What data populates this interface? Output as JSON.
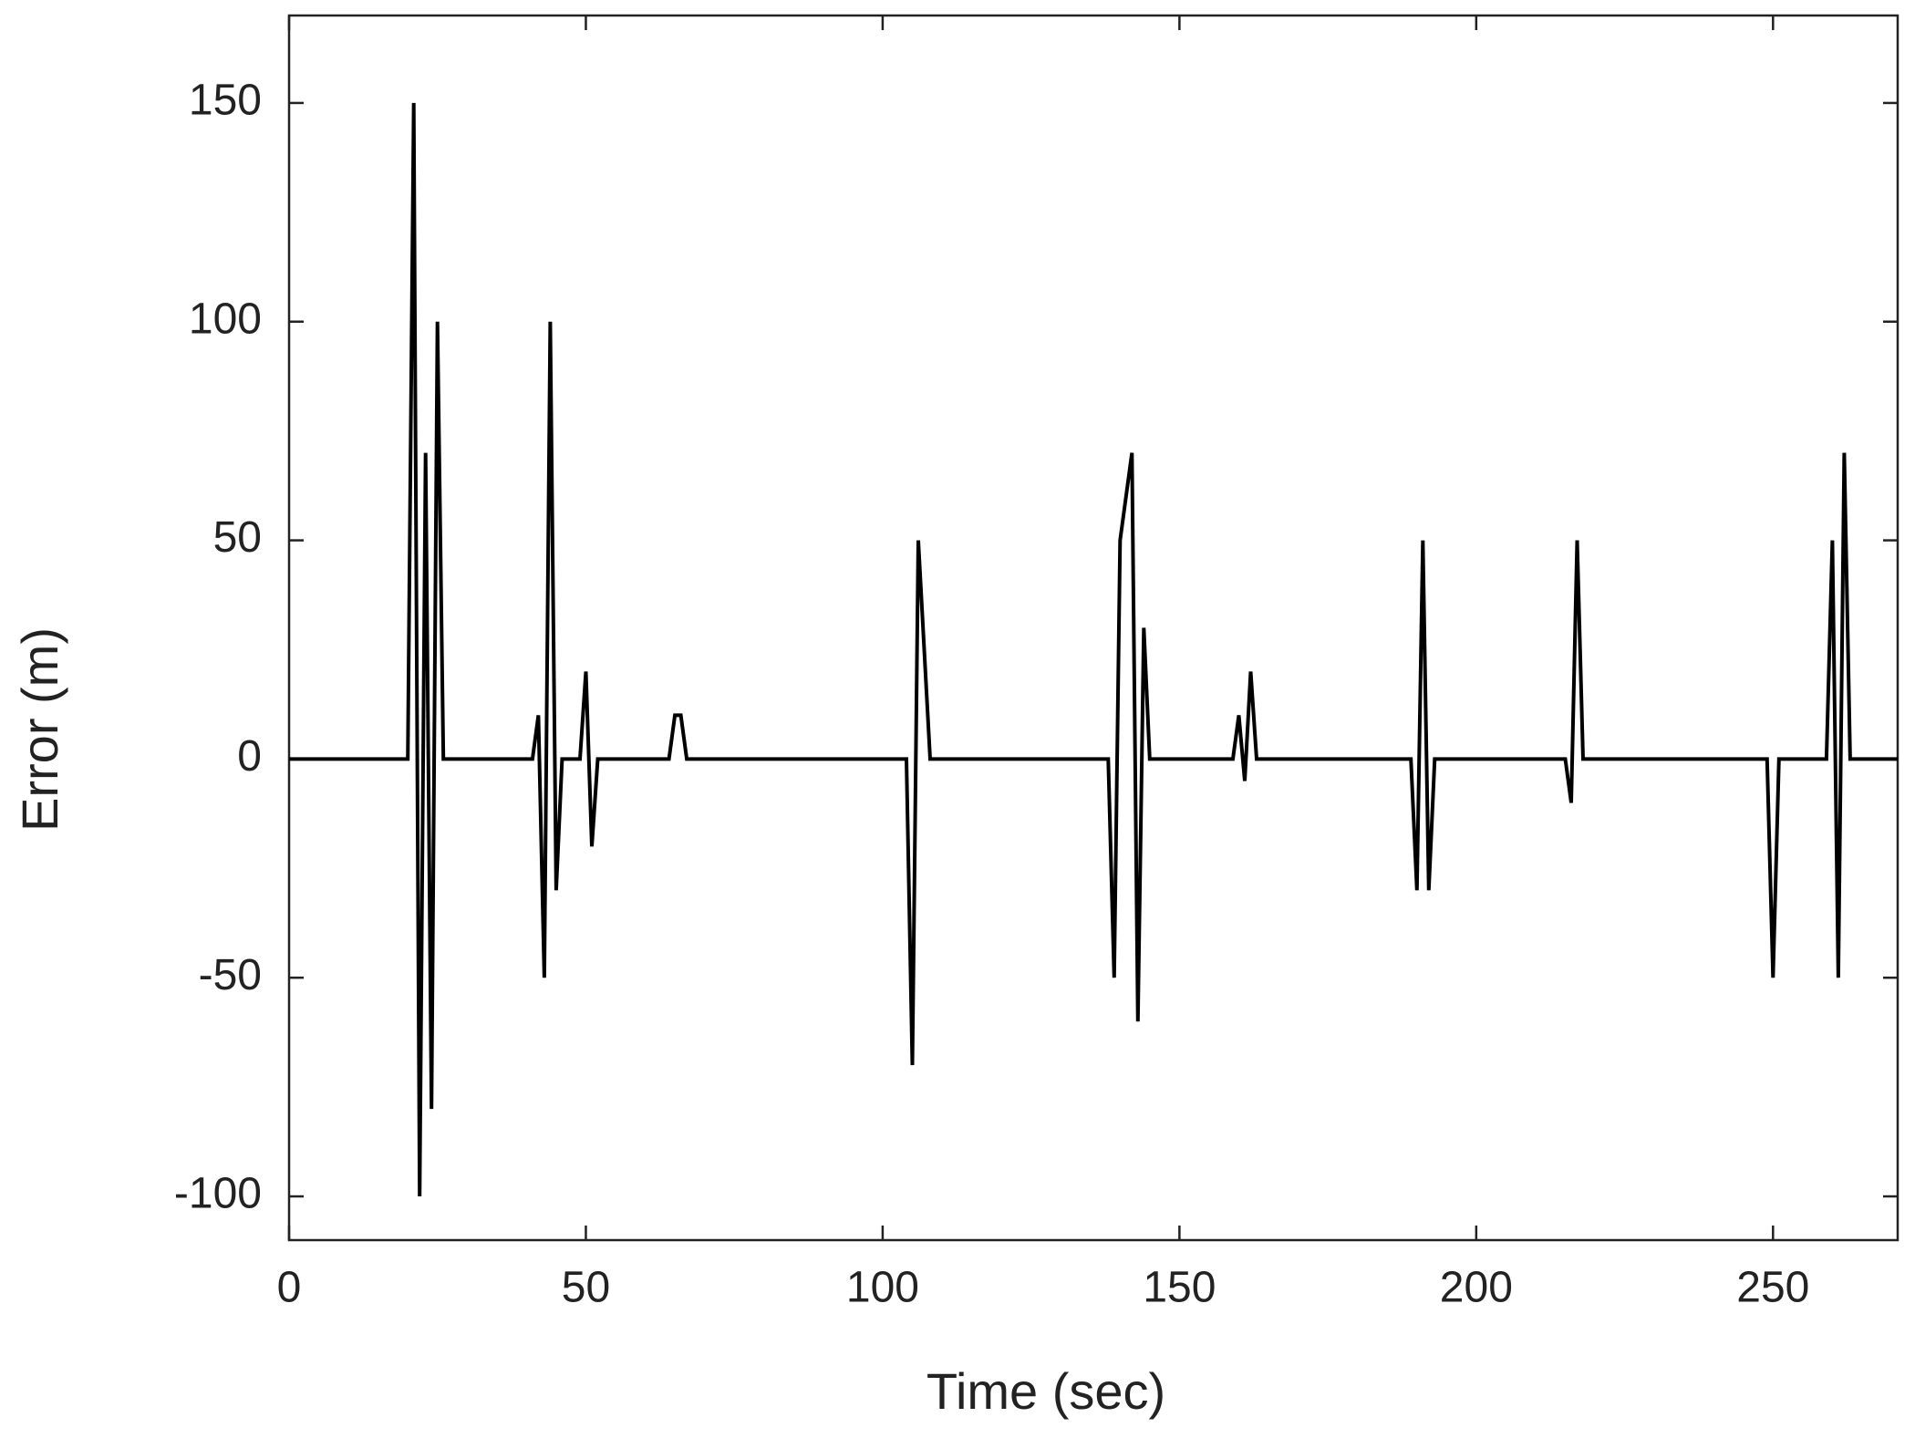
{
  "chart_data": {
    "type": "line",
    "xlabel": "Time (sec)",
    "ylabel": "Error (m)",
    "x": [
      0,
      20,
      21,
      22,
      23,
      24,
      25,
      26,
      41,
      42,
      43,
      44,
      45,
      46,
      49,
      50,
      51,
      52,
      64,
      65,
      66,
      67,
      104,
      105,
      106,
      108,
      138,
      139,
      140,
      142,
      143,
      144,
      145,
      159,
      160,
      161,
      162,
      163,
      189,
      190,
      191,
      192,
      193,
      215,
      216,
      217,
      218,
      249,
      250,
      251,
      259,
      260,
      261,
      262,
      263,
      271
    ],
    "values": [
      0,
      0,
      150,
      -100,
      70,
      -80,
      100,
      0,
      0,
      10,
      -50,
      100,
      -30,
      0,
      0,
      20,
      -20,
      0,
      0,
      10,
      10,
      0,
      0,
      -70,
      50,
      0,
      0,
      -50,
      50,
      70,
      -60,
      30,
      0,
      0,
      10,
      -5,
      20,
      0,
      0,
      -30,
      50,
      -30,
      0,
      0,
      -10,
      50,
      0,
      0,
      -50,
      0,
      0,
      50,
      -50,
      70,
      0,
      0
    ],
    "color": "#000000",
    "xlim": [
      0,
      271
    ],
    "xticks": [
      0,
      50,
      100,
      150,
      200,
      250
    ],
    "ylim": [
      -110,
      170
    ],
    "yticks": [
      -100,
      -50,
      0,
      50,
      100,
      150
    ],
    "grid": false
  }
}
